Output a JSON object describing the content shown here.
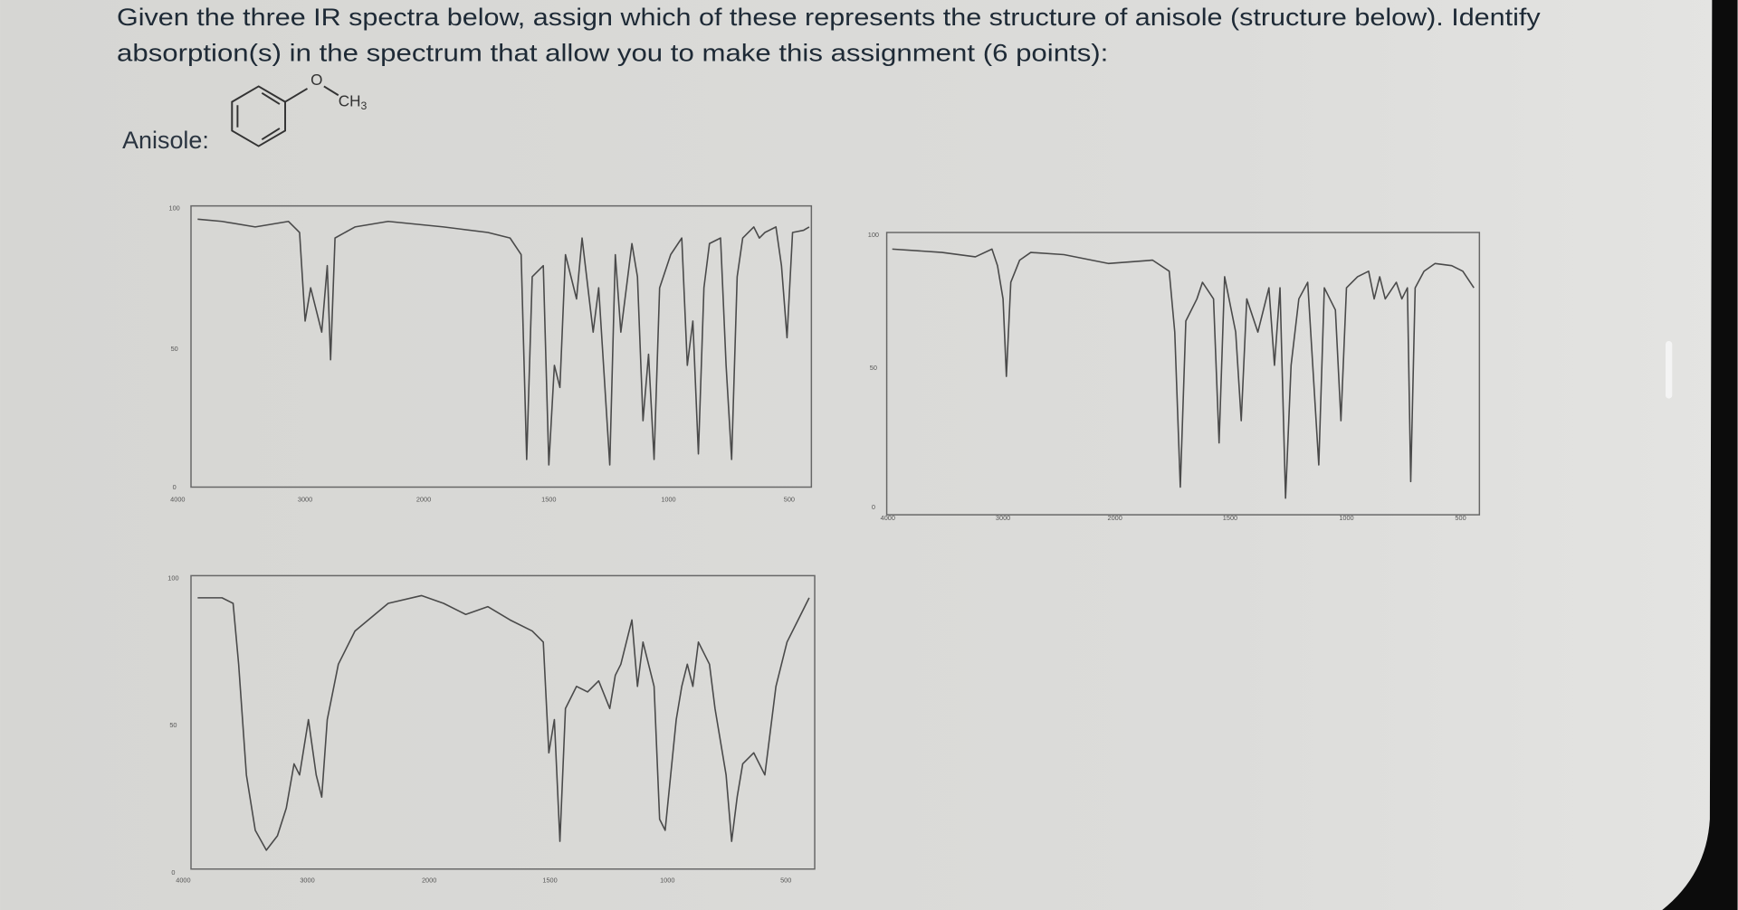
{
  "question": {
    "line1": "Given the three IR spectra below, assign which of these represents the structure of anisole (structure below). Identify",
    "line2": "absorption(s) in the spectrum that allow you to make this assignment (6 points):"
  },
  "structure": {
    "label": "Anisole:",
    "oxygen": "O",
    "methyl": "CH",
    "methyl_subscript": "3"
  },
  "spectra": [
    {
      "y_labels": [
        "100",
        "50",
        "0"
      ],
      "x_labels": [
        "4000",
        "3000",
        "2000",
        "1500",
        "1000",
        "500"
      ]
    },
    {
      "y_labels": [
        "100",
        "50",
        "0"
      ],
      "x_labels": [
        "4000",
        "3000",
        "2000",
        "1500",
        "1000",
        "500"
      ]
    },
    {
      "y_labels": [
        "100",
        "50",
        "0"
      ],
      "x_labels": [
        "4000",
        "3000",
        "2000",
        "1500",
        "1000",
        "500"
      ]
    }
  ]
}
